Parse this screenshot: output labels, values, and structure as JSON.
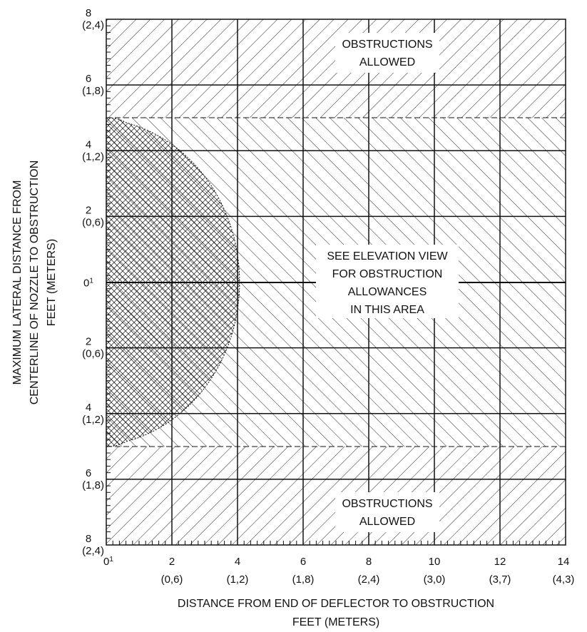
{
  "x_axis": {
    "title_line1": "DISTANCE FROM END OF DEFLECTOR TO OBSTRUCTION",
    "title_line2": "FEET (METERS)",
    "ticks": [
      {
        "feet": "0",
        "sup": "1",
        "meters": ""
      },
      {
        "feet": "2",
        "sup": "",
        "meters": "(0,6)"
      },
      {
        "feet": "4",
        "sup": "",
        "meters": "(1,2)"
      },
      {
        "feet": "6",
        "sup": "",
        "meters": "(1,8)"
      },
      {
        "feet": "8",
        "sup": "",
        "meters": "(2,4)"
      },
      {
        "feet": "10",
        "sup": "",
        "meters": "(3,0)"
      },
      {
        "feet": "12",
        "sup": "",
        "meters": "(3,7)"
      },
      {
        "feet": "14",
        "sup": "",
        "meters": "(4,3)"
      }
    ]
  },
  "y_axis": {
    "title_line1": "MAXIMUM LATERAL DISTANCE  FROM",
    "title_line2": "CENTERLINE OF NOZZLE TO OBSTRUCTION",
    "title_line3": "FEET (METERS)",
    "ticks": [
      {
        "feet": "8",
        "sup": "",
        "meters": "(2,4)"
      },
      {
        "feet": "6",
        "sup": "",
        "meters": "(1,8)"
      },
      {
        "feet": "4",
        "sup": "",
        "meters": "(1,2)"
      },
      {
        "feet": "2",
        "sup": "",
        "meters": "(0,6)"
      },
      {
        "feet": "0",
        "sup": "1",
        "meters": ""
      },
      {
        "feet": "2",
        "sup": "",
        "meters": "(0,6)"
      },
      {
        "feet": "4",
        "sup": "",
        "meters": "(1,2)"
      },
      {
        "feet": "6",
        "sup": "",
        "meters": "(1,8)"
      },
      {
        "feet": "8",
        "sup": "",
        "meters": "(2,4)"
      }
    ]
  },
  "regions": {
    "top": {
      "line1": "OBSTRUCTIONS",
      "line2": "ALLOWED"
    },
    "bottom": {
      "line1": "OBSTRUCTIONS",
      "line2": "ALLOWED"
    },
    "center": {
      "line1": "SEE ELEVATION VIEW",
      "line2": "FOR OBSTRUCTION",
      "line3": "ALLOWANCES",
      "line4": "IN THIS AREA"
    }
  },
  "colors": {
    "line": "#111111",
    "background": "#ffffff"
  }
}
